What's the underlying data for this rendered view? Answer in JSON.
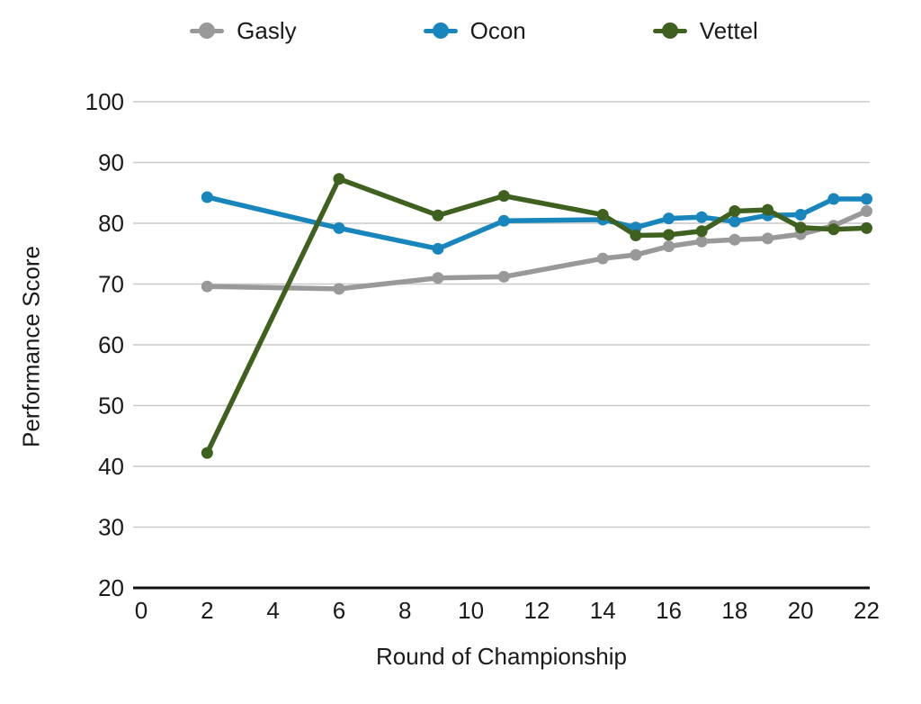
{
  "chart_data": {
    "type": "line",
    "title": "",
    "xlabel": "Round of Championship",
    "ylabel": "Performance Score",
    "x": [
      2,
      6,
      9,
      11,
      14,
      15,
      16,
      17,
      18,
      19,
      20,
      21,
      22
    ],
    "series": [
      {
        "name": "Gasly",
        "color": "#999999",
        "values": [
          69.6,
          69.2,
          71.0,
          71.2,
          74.2,
          74.8,
          76.2,
          77.0,
          77.3,
          77.5,
          78.2,
          79.6,
          82.0
        ]
      },
      {
        "name": "Ocon",
        "color": "#1886BC",
        "values": [
          84.3,
          79.2,
          75.8,
          80.4,
          80.6,
          79.3,
          80.8,
          81.0,
          80.3,
          81.3,
          81.4,
          84.0,
          84.0
        ]
      },
      {
        "name": "Vettel",
        "color": "#3F611F",
        "values": [
          42.2,
          87.3,
          81.3,
          84.5,
          81.4,
          78.0,
          78.1,
          78.7,
          82.0,
          82.2,
          79.3,
          79.0,
          79.2
        ]
      }
    ],
    "xlim": [
      0,
      22
    ],
    "ylim": [
      20,
      100
    ],
    "x_ticks": [
      0,
      2,
      4,
      6,
      8,
      10,
      12,
      14,
      16,
      18,
      20,
      22
    ],
    "y_ticks": [
      20,
      30,
      40,
      50,
      60,
      70,
      80,
      90,
      100
    ],
    "grid": "horizontal",
    "legend_position": "top",
    "grid_color": "#c9c9c9",
    "axis_color": "#111111",
    "text_color": "#1a1a1a"
  }
}
